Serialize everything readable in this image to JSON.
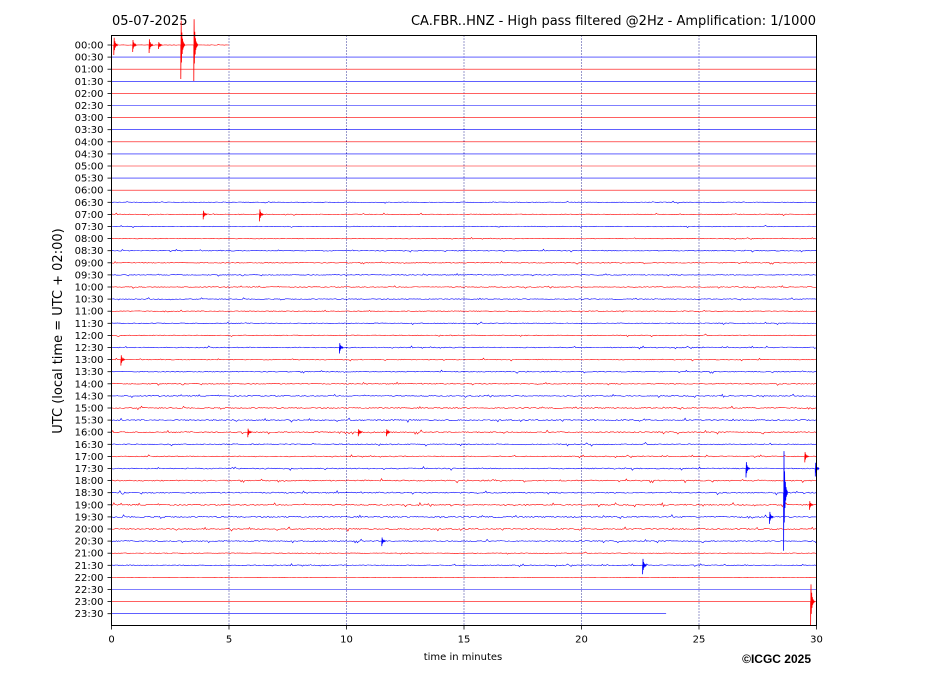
{
  "header": {
    "date": "05-07-2025",
    "title": "CA.FBR..HNZ - High pass filtered @2Hz - Amplification: 1/1000"
  },
  "footer": {
    "copyright": "©ICGC 2025"
  },
  "chart_data": {
    "type": "helicorder",
    "title": "CA.FBR..HNZ - High pass filtered @2Hz - Amplification: 1/1000",
    "date": "05-07-2025",
    "xlabel": "time in minutes",
    "ylabel": "UTC (local time = UTC + 02:00)",
    "xlim": [
      0,
      30
    ],
    "x_ticks": [
      0,
      5,
      10,
      15,
      20,
      25,
      30
    ],
    "x_tick_labels": [
      "0",
      "5",
      "10",
      "15",
      "20",
      "25",
      "30"
    ],
    "grid": "vertical dotted lines every 5 minutes",
    "colors": {
      "even_rows": "#ff0000",
      "odd_rows": "#0000ff",
      "grid": "#000080"
    },
    "rows": [
      "00:00",
      "00:30",
      "01:00",
      "01:30",
      "02:00",
      "02:30",
      "03:00",
      "03:30",
      "04:00",
      "04:30",
      "05:00",
      "05:30",
      "06:00",
      "06:30",
      "07:00",
      "07:30",
      "08:00",
      "08:30",
      "09:00",
      "09:30",
      "10:00",
      "10:30",
      "11:00",
      "11:30",
      "12:00",
      "12:30",
      "13:00",
      "13:30",
      "14:00",
      "14:30",
      "15:00",
      "15:30",
      "16:00",
      "16:30",
      "17:00",
      "17:30",
      "18:00",
      "18:30",
      "19:00",
      "19:30",
      "20:00",
      "20:30",
      "21:00",
      "21:30",
      "22:00",
      "22:30",
      "23:00",
      "23:30"
    ],
    "row_length_minutes": [
      5,
      30,
      30,
      30,
      30,
      30,
      30,
      30,
      30,
      30,
      30,
      30,
      30,
      30,
      30,
      30,
      30,
      30,
      30,
      30,
      30,
      30,
      30,
      30,
      30,
      30,
      30,
      30,
      30,
      30,
      30,
      30,
      30,
      30,
      30,
      30,
      30,
      30,
      30,
      30,
      30,
      30,
      30,
      30,
      30,
      30,
      30,
      23.6
    ],
    "noise_level": [
      0.3,
      0,
      0,
      0,
      0,
      0,
      0,
      0,
      0,
      0,
      0,
      0,
      0,
      0.5,
      0.6,
      0.5,
      0.5,
      0.6,
      0.6,
      0.6,
      0.6,
      0.6,
      0.6,
      0.6,
      0.6,
      0.7,
      0.6,
      0.7,
      0.7,
      0.7,
      0.8,
      0.9,
      0.9,
      0.8,
      0.7,
      0.8,
      0.9,
      0.9,
      0.9,
      1.0,
      0.9,
      0.8,
      0.5,
      0.7,
      0.2,
      0,
      0,
      0
    ],
    "events": [
      {
        "row": 0,
        "minute": 0.1,
        "amplitude": 10
      },
      {
        "row": 0,
        "minute": 0.9,
        "amplitude": 7
      },
      {
        "row": 0,
        "minute": 1.6,
        "amplitude": 8
      },
      {
        "row": 0,
        "minute": 2.0,
        "amplitude": 4
      },
      {
        "row": 0,
        "minute": 2.95,
        "amplitude": 34
      },
      {
        "row": 0,
        "minute": 3.5,
        "amplitude": 36
      },
      {
        "row": 14,
        "minute": 3.9,
        "amplitude": 5
      },
      {
        "row": 14,
        "minute": 6.3,
        "amplitude": 7
      },
      {
        "row": 25,
        "minute": 9.7,
        "amplitude": 6
      },
      {
        "row": 26,
        "minute": 0.4,
        "amplitude": 6
      },
      {
        "row": 32,
        "minute": 5.8,
        "amplitude": 5
      },
      {
        "row": 32,
        "minute": 10.5,
        "amplitude": 4
      },
      {
        "row": 32,
        "minute": 11.7,
        "amplitude": 4
      },
      {
        "row": 34,
        "minute": 29.5,
        "amplitude": 6
      },
      {
        "row": 35,
        "minute": 27.0,
        "amplitude": 9
      },
      {
        "row": 35,
        "minute": 29.95,
        "amplitude": 8
      },
      {
        "row": 37,
        "minute": 28.6,
        "amplitude": 58
      },
      {
        "row": 38,
        "minute": 29.7,
        "amplitude": 5
      },
      {
        "row": 39,
        "minute": 28.0,
        "amplitude": 7
      },
      {
        "row": 41,
        "minute": 11.5,
        "amplitude": 5
      },
      {
        "row": 43,
        "minute": 22.6,
        "amplitude": 9
      },
      {
        "row": 46,
        "minute": 29.75,
        "amplitude": 24
      }
    ]
  }
}
